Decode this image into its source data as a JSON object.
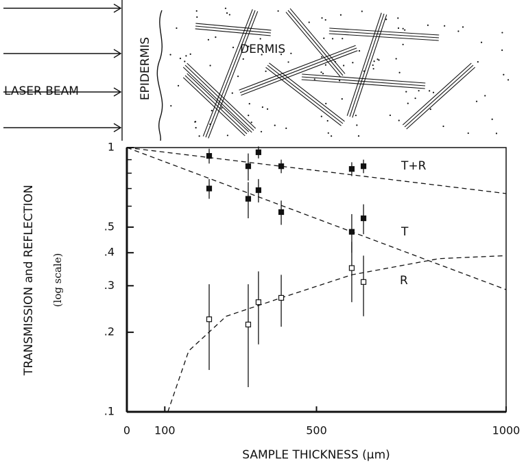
{
  "diagram": {
    "beam_label": "LASER BEAM",
    "epidermis_label": "EPIDERMIS",
    "dermis_label": "DERMIS"
  },
  "chart_data": {
    "type": "scatter",
    "ylabel": "TRANSMISSION and REFLECTION",
    "ylabel_note": "(log scale)",
    "xlabel": "SAMPLE THICKNESS (µm)",
    "log_y": true,
    "xlim": [
      0,
      1000
    ],
    "xticks": [
      0,
      100,
      500,
      1000
    ],
    "ylim": [
      0.1,
      1
    ],
    "yticks": [
      {
        "value": 0.1,
        "label": ".1"
      },
      {
        "value": 0.2,
        "label": ".2"
      },
      {
        "value": 0.3,
        "label": ".3"
      },
      {
        "value": 0.4,
        "label": ".4"
      },
      {
        "value": 0.5,
        "label": ".5"
      },
      1
    ],
    "yminor": [
      0.6,
      0.7,
      0.8,
      0.9
    ],
    "x": [
      217,
      320,
      347,
      407,
      593,
      624
    ],
    "series": [
      {
        "name": "T+R",
        "color": "#111111",
        "marker": "filled",
        "values": [
          0.93,
          0.85,
          0.96,
          0.85,
          0.83,
          0.85
        ],
        "errors": [
          0.06,
          0.1,
          0.05,
          0.05,
          0.05,
          0.05
        ],
        "fit_x": [
          0,
          1000
        ],
        "fit_values": [
          1,
          0.67
        ]
      },
      {
        "name": "T",
        "color": "#111111",
        "marker": "filled",
        "values": [
          0.7,
          0.64,
          0.69,
          0.57,
          0.48,
          0.54
        ],
        "errors": [
          0.06,
          0.1,
          0.07,
          0.06,
          0.08,
          0.07
        ],
        "fit_x": [
          0,
          1000
        ],
        "fit_values": [
          1,
          0.29
        ]
      },
      {
        "name": "R",
        "color": "#111111",
        "marker": "open",
        "values": [
          0.224,
          0.214,
          0.26,
          0.27,
          0.35,
          0.31
        ],
        "errors": [
          0.08,
          0.09,
          0.08,
          0.06,
          0.09,
          0.08
        ],
        "fit_x": [
          108,
          163,
          262,
          407,
          593,
          823,
          1000
        ],
        "fit_values": [
          0.1,
          0.17,
          0.23,
          0.27,
          0.33,
          0.38,
          0.39
        ]
      }
    ]
  }
}
